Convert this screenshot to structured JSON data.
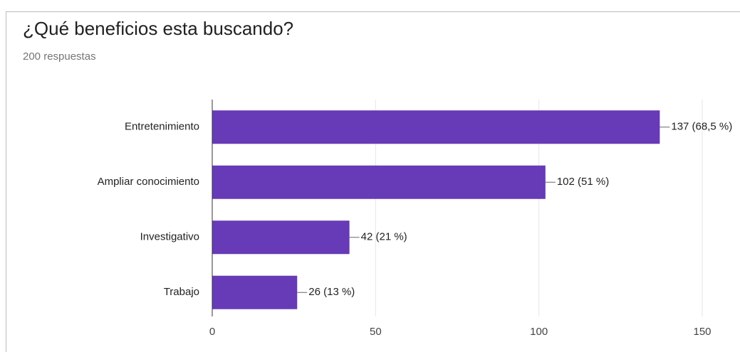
{
  "chart_data": {
    "type": "bar",
    "orientation": "horizontal",
    "title": "¿Qué beneficios esta buscando?",
    "subtitle": "200 respuestas",
    "categories": [
      "Entretenimiento",
      "Ampliar conocimiento",
      "Investigativo",
      "Trabajo"
    ],
    "values": [
      137,
      102,
      42,
      26
    ],
    "value_labels": [
      "137 (68,5 %)",
      "102 (51 %)",
      "42 (21 %)",
      "26 (13 %)"
    ],
    "color": "#673ab7",
    "xlim": [
      0,
      150
    ],
    "xticks": [
      0,
      50,
      100,
      150
    ],
    "grid": true
  }
}
